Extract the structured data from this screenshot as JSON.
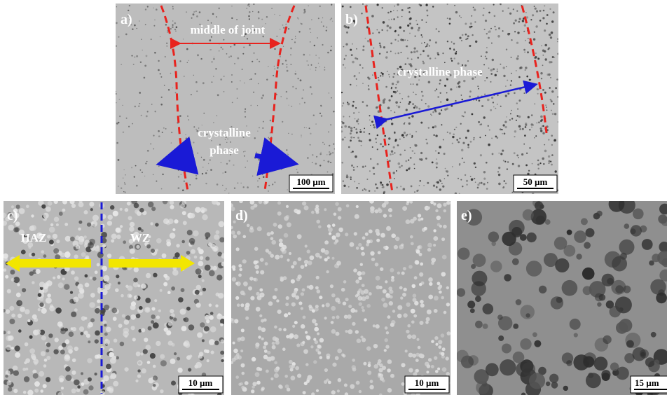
{
  "panels": [
    {
      "label": "a)",
      "annotations": [
        "middle of joint",
        "crystalline",
        "phase"
      ],
      "scale_bar": "100 µm"
    },
    {
      "label": "b)",
      "annotations": [
        "crystalline phase"
      ],
      "scale_bar": "50 µm"
    },
    {
      "label": "c)",
      "annotations": [
        "HAZ",
        "WZ"
      ],
      "scale_bar": "10 µm"
    },
    {
      "label": "d)",
      "annotations": [],
      "scale_bar": "10 µm"
    },
    {
      "label": "e)",
      "annotations": [],
      "scale_bar": "15 µm"
    }
  ]
}
